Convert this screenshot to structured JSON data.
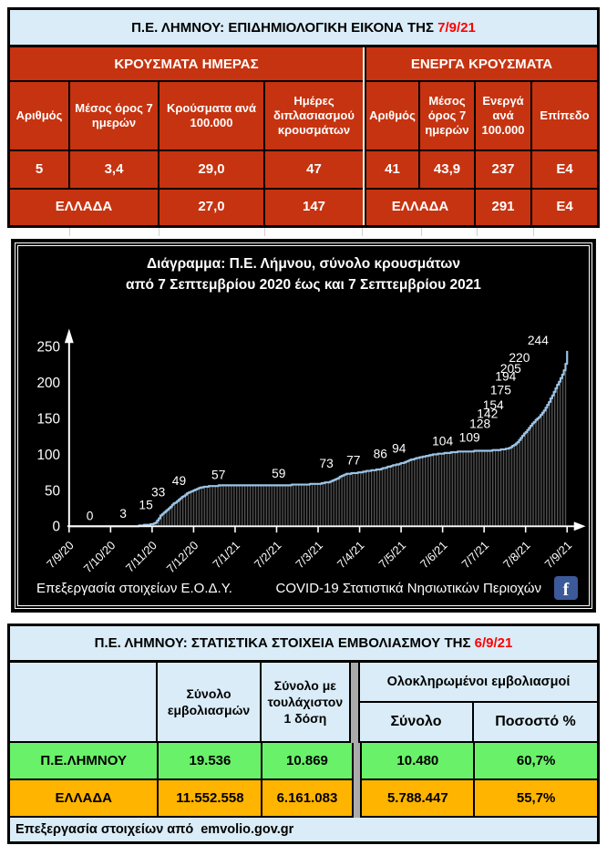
{
  "top_table": {
    "title": "Π.Ε. ΛΗΜΝΟΥ: ΕΠΙΔΗΜΙΟΛΟΓΙΚΗ ΕΙΚΟΝΑ ΤΗΣ ",
    "title_date": "7/9/21",
    "left": {
      "banner": "ΚΡΟΥΣΜΑΤΑ ΗΜΕΡΑΣ",
      "headers": [
        "Αριθμός",
        "Μέσος όρος 7 ημερών",
        "Κρούσματα ανά 100.000",
        "Ημέρες διπλασιασμού κρουσμάτων"
      ],
      "row": [
        "5",
        "3,4",
        "29,0",
        "47"
      ],
      "greece_label": "ΕΛΛΑΔΑ",
      "greece_row": [
        "27,0",
        "147"
      ]
    },
    "right": {
      "banner": "ΕΝΕΡΓΑ ΚΡΟΥΣΜΑΤΑ",
      "headers": [
        "Αριθμός",
        "Μέσος όρος 7 ημερών",
        "Ενεργά ανά 100.000",
        "Επίπεδο"
      ],
      "row": [
        "41",
        "43,9",
        "237",
        "E4"
      ],
      "greece_label": "ΕΛΛΑΔΑ",
      "greece_row": [
        "291",
        "E4"
      ]
    }
  },
  "chart": {
    "title_line1": "Διάγραμμα:  Π.Ε. Λήμνου, σύνολο κρουσμάτων",
    "title_line2": "από 7 Σεπτεμβρίου 2020 έως και 7 Σεπτεμβρίου 2021",
    "footer_left": "Επεξεργασία στοιχείων Ε.Ο.Δ.Υ.",
    "footer_right": "COVID-19 Στατιστικά Νησιωτικών Περιοχών",
    "facebook_letter": "f"
  },
  "chart_data": {
    "type": "area",
    "title": "Διάγραμμα: Π.Ε. Λήμνου, σύνολο κρουσμάτων από 7 Σεπτεμβρίου 2020 έως και 7 Σεπτεμβρίου 2021",
    "x_tick_labels": [
      "7/9/20",
      "7/10/20",
      "7/11/20",
      "7/12/20",
      "7/1/21",
      "7/2/21",
      "7/3/21",
      "7/4/21",
      "7/5/21",
      "7/6/21",
      "7/7/21",
      "7/8/21",
      "7/9/21"
    ],
    "ylim": [
      0,
      250
    ],
    "y_ticks": [
      0,
      50,
      100,
      150,
      200,
      250
    ],
    "grid": false,
    "background": "#000000",
    "line_color": "#9CC3E6",
    "point_labels": [
      [
        0,
        0.5
      ],
      [
        3,
        1.3
      ],
      [
        15,
        1.85
      ],
      [
        33,
        2.15
      ],
      [
        49,
        2.65
      ],
      [
        57,
        3.6
      ],
      [
        59,
        5.05
      ],
      [
        73,
        6.2
      ],
      [
        77,
        6.85
      ],
      [
        86,
        7.5
      ],
      [
        94,
        7.95
      ],
      [
        104,
        9.0
      ],
      [
        109,
        9.65
      ],
      [
        128,
        9.9
      ],
      [
        142,
        10.08
      ],
      [
        154,
        10.22
      ],
      [
        175,
        10.4
      ],
      [
        194,
        10.52
      ],
      [
        205,
        10.64
      ],
      [
        220,
        10.85
      ],
      [
        244,
        11.3
      ]
    ],
    "series": [
      {
        "name": "σύνολο κρουσμάτων",
        "points": [
          [
            0,
            0
          ],
          [
            1.6,
            0
          ],
          [
            1.85,
            2
          ],
          [
            2.0,
            3
          ],
          [
            2.1,
            6
          ],
          [
            2.2,
            15
          ],
          [
            2.3,
            20
          ],
          [
            2.45,
            28
          ],
          [
            2.55,
            33
          ],
          [
            2.7,
            40
          ],
          [
            2.85,
            46
          ],
          [
            3.0,
            50
          ],
          [
            3.15,
            54
          ],
          [
            3.4,
            56
          ],
          [
            3.8,
            57
          ],
          [
            5.1,
            57
          ],
          [
            5.6,
            58
          ],
          [
            6.0,
            59
          ],
          [
            6.3,
            62
          ],
          [
            6.5,
            68
          ],
          [
            6.7,
            73
          ],
          [
            7.0,
            75
          ],
          [
            7.2,
            77
          ],
          [
            7.45,
            79
          ],
          [
            7.7,
            83
          ],
          [
            7.9,
            86
          ],
          [
            8.1,
            89
          ],
          [
            8.3,
            94
          ],
          [
            8.55,
            97
          ],
          [
            8.8,
            100
          ],
          [
            9.1,
            102
          ],
          [
            9.4,
            104
          ],
          [
            10.1,
            105
          ],
          [
            10.45,
            107
          ],
          [
            10.6,
            109
          ],
          [
            10.75,
            114
          ],
          [
            10.85,
            121
          ],
          [
            10.95,
            128
          ],
          [
            11.05,
            135
          ],
          [
            11.15,
            142
          ],
          [
            11.25,
            149
          ],
          [
            11.35,
            154
          ],
          [
            11.45,
            162
          ],
          [
            11.55,
            172
          ],
          [
            11.63,
            181
          ],
          [
            11.7,
            190
          ],
          [
            11.77,
            198
          ],
          [
            11.83,
            205
          ],
          [
            11.88,
            211
          ],
          [
            11.93,
            218
          ],
          [
            11.96,
            226
          ],
          [
            12,
            244
          ]
        ]
      }
    ]
  },
  "bottom_table": {
    "title": "Π.Ε. ΛΗΜΝΟΥ: ΣΤΑΤΙΣΤΙΚΑ ΣΤΟΙΧΕΙΑ ΕΜΒΟΛΙΑΣΜΟΥ ΤΗΣ ",
    "title_date": "6/9/21",
    "col_total": "Σύνολο εμβολιασμών",
    "col_first_dose": "Σύνολο με τουλάχιστον 1 δόση",
    "col_completed_group": "Ολοκληρωμένοι εμβολιασμοί",
    "col_completed_total": "Σύνολο",
    "col_completed_pct": "Ποσοστό %",
    "row_limnos": {
      "label": "Π.Ε.ΛΗΜΝΟΥ",
      "values": [
        "19.536",
        "10.869",
        "10.480",
        "60,7%"
      ]
    },
    "row_greece": {
      "label": "ΕΛΛΑΔΑ",
      "values": [
        "11.552.558",
        "6.161.083",
        "5.788.447",
        "55,7%"
      ]
    },
    "footer": "Επεξεργασία στοιχείων από  emvolio.gov.gr"
  },
  "colors": {
    "header_blue": "#D9ECF7",
    "table_red": "#C63310",
    "row_green": "#69F169",
    "row_amber": "#FFB400",
    "date_red": "#FF0000",
    "facebook_blue": "#3C5A99"
  }
}
